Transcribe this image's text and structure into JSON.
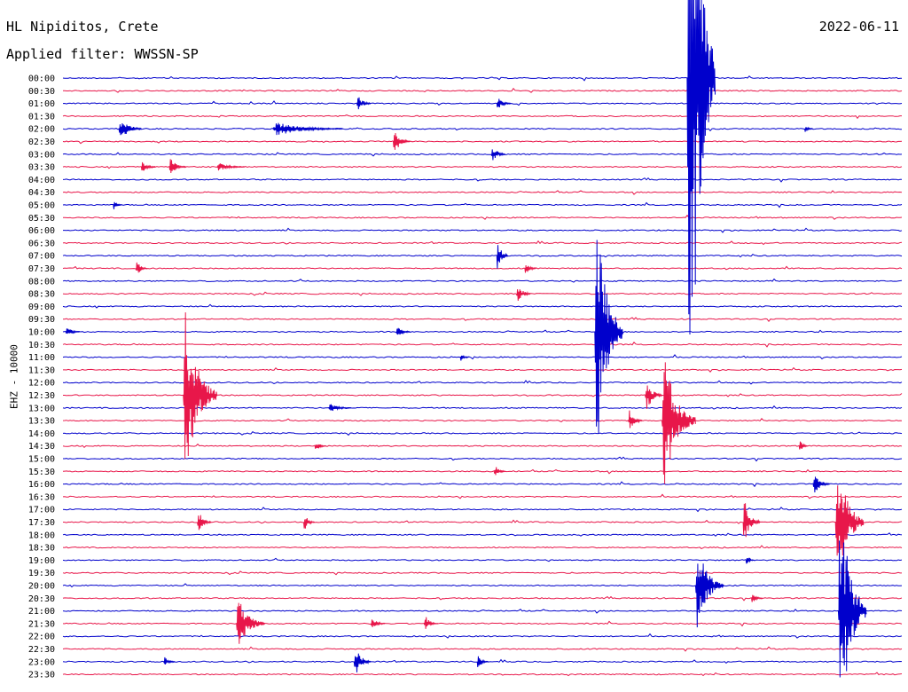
{
  "header": {
    "station": "HL Nipiditos, Crete",
    "filter": "Applied filter: WWSSN-SP",
    "date": "2022-06-11",
    "channel": "EHZ - 10000"
  },
  "chart_data": {
    "type": "line",
    "title": "HL Nipiditos, Crete",
    "ylabel": "EHZ - 10000",
    "colors": {
      "even_rows": "#0000cc",
      "odd_rows": "#e8174a"
    },
    "row_labels": [
      "00:00",
      "00:30",
      "01:00",
      "01:30",
      "02:00",
      "02:30",
      "03:00",
      "03:30",
      "04:00",
      "04:30",
      "05:00",
      "05:30",
      "06:00",
      "06:30",
      "07:00",
      "07:30",
      "08:00",
      "08:30",
      "09:00",
      "09:30",
      "10:00",
      "10:30",
      "11:00",
      "11:30",
      "12:00",
      "12:30",
      "13:00",
      "13:30",
      "14:00",
      "14:30",
      "15:00",
      "15:30",
      "16:00",
      "16:30",
      "17:00",
      "17:30",
      "18:00",
      "18:30",
      "19:00",
      "19:30",
      "20:00",
      "20:30",
      "21:00",
      "21:30",
      "22:00",
      "22:30",
      "23:00",
      "23:30"
    ],
    "events": [
      {
        "row": 0,
        "minute": 22.3,
        "amp": 500,
        "dur": 1.0
      },
      {
        "row": 2,
        "minute": 10.5,
        "amp": 10,
        "dur": 0.5
      },
      {
        "row": 2,
        "minute": 15.5,
        "amp": 8,
        "dur": 0.5
      },
      {
        "row": 4,
        "minute": 2.0,
        "amp": 14,
        "dur": 0.8
      },
      {
        "row": 4,
        "minute": 7.5,
        "amp": 8,
        "dur": 2.5
      },
      {
        "row": 4,
        "minute": 26.5,
        "amp": 4,
        "dur": 0.3
      },
      {
        "row": 5,
        "minute": 11.8,
        "amp": 14,
        "dur": 0.6
      },
      {
        "row": 6,
        "minute": 15.3,
        "amp": 12,
        "dur": 0.5
      },
      {
        "row": 7,
        "minute": 2.8,
        "amp": 8,
        "dur": 0.5
      },
      {
        "row": 7,
        "minute": 3.8,
        "amp": 10,
        "dur": 0.6
      },
      {
        "row": 7,
        "minute": 5.5,
        "amp": 5,
        "dur": 1.0
      },
      {
        "row": 10,
        "minute": 1.8,
        "amp": 5,
        "dur": 0.3
      },
      {
        "row": 14,
        "minute": 15.5,
        "amp": 18,
        "dur": 0.4
      },
      {
        "row": 15,
        "minute": 2.6,
        "amp": 10,
        "dur": 0.4
      },
      {
        "row": 15,
        "minute": 16.5,
        "amp": 8,
        "dur": 0.4
      },
      {
        "row": 17,
        "minute": 16.2,
        "amp": 14,
        "dur": 0.5
      },
      {
        "row": 20,
        "minute": 0.1,
        "amp": 6,
        "dur": 0.5
      },
      {
        "row": 20,
        "minute": 11.9,
        "amp": 8,
        "dur": 0.5
      },
      {
        "row": 20,
        "minute": 19.0,
        "amp": 150,
        "dur": 1.0
      },
      {
        "row": 22,
        "minute": 14.2,
        "amp": 6,
        "dur": 0.3
      },
      {
        "row": 25,
        "minute": 4.3,
        "amp": 100,
        "dur": 1.2
      },
      {
        "row": 25,
        "minute": 20.8,
        "amp": 20,
        "dur": 0.6
      },
      {
        "row": 26,
        "minute": 9.5,
        "amp": 6,
        "dur": 0.8
      },
      {
        "row": 27,
        "minute": 20.2,
        "amp": 14,
        "dur": 0.5
      },
      {
        "row": 27,
        "minute": 21.4,
        "amp": 80,
        "dur": 1.2
      },
      {
        "row": 29,
        "minute": 9.0,
        "amp": 8,
        "dur": 0.4
      },
      {
        "row": 29,
        "minute": 26.3,
        "amp": 8,
        "dur": 0.3
      },
      {
        "row": 31,
        "minute": 15.4,
        "amp": 8,
        "dur": 0.4
      },
      {
        "row": 32,
        "minute": 26.8,
        "amp": 12,
        "dur": 0.6
      },
      {
        "row": 35,
        "minute": 4.8,
        "amp": 14,
        "dur": 0.5
      },
      {
        "row": 35,
        "minute": 8.6,
        "amp": 10,
        "dur": 0.4
      },
      {
        "row": 35,
        "minute": 24.3,
        "amp": 28,
        "dur": 0.6
      },
      {
        "row": 35,
        "minute": 27.6,
        "amp": 80,
        "dur": 1.0
      },
      {
        "row": 38,
        "minute": 24.4,
        "amp": 5,
        "dur": 0.3
      },
      {
        "row": 40,
        "minute": 22.6,
        "amp": 50,
        "dur": 1.0
      },
      {
        "row": 41,
        "minute": 24.6,
        "amp": 6,
        "dur": 0.4
      },
      {
        "row": 42,
        "minute": 27.7,
        "amp": 150,
        "dur": 1.0
      },
      {
        "row": 43,
        "minute": 6.2,
        "amp": 30,
        "dur": 1.0
      },
      {
        "row": 43,
        "minute": 11.0,
        "amp": 8,
        "dur": 0.5
      },
      {
        "row": 43,
        "minute": 12.9,
        "amp": 10,
        "dur": 0.5
      },
      {
        "row": 46,
        "minute": 3.6,
        "amp": 6,
        "dur": 0.4
      },
      {
        "row": 46,
        "minute": 10.4,
        "amp": 18,
        "dur": 0.6
      },
      {
        "row": 46,
        "minute": 14.8,
        "amp": 8,
        "dur": 0.4
      }
    ]
  }
}
